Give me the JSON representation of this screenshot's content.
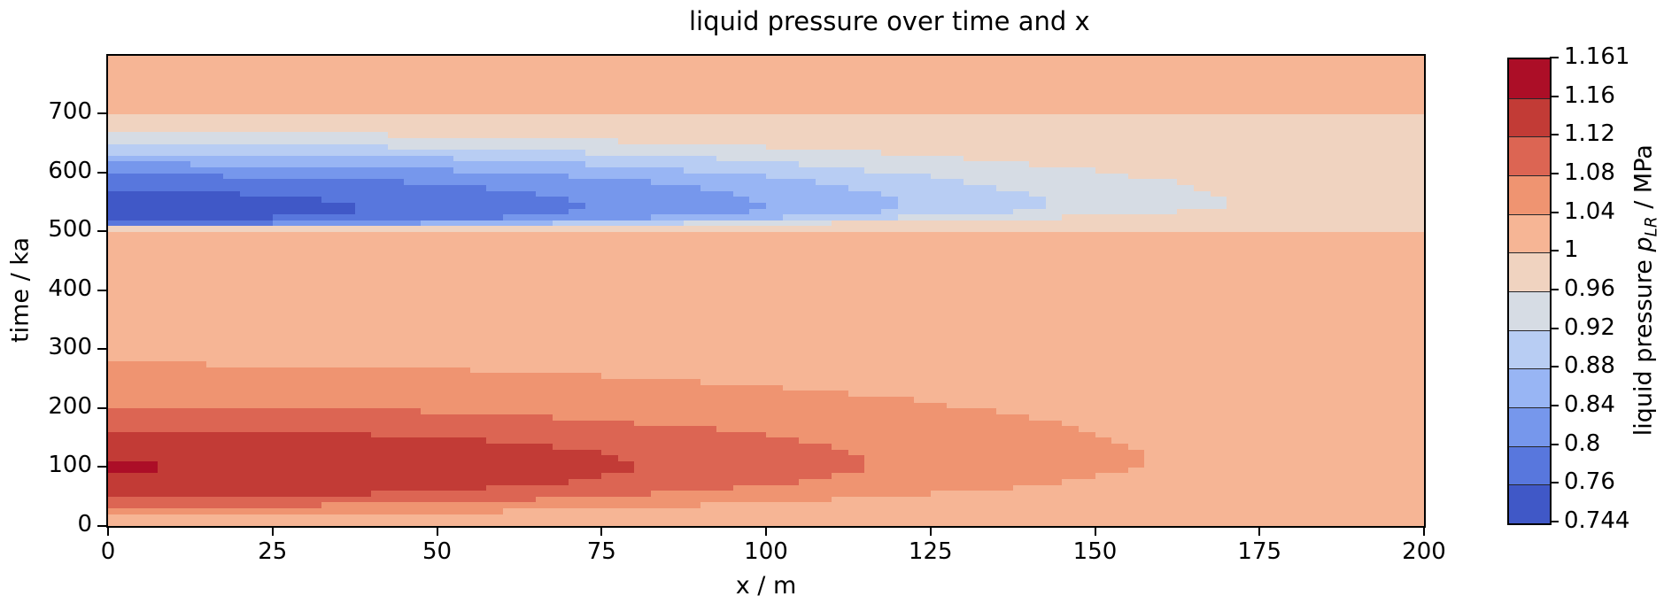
{
  "title": "liquid pressure over time and x",
  "axes": {
    "xlabel": "x / m",
    "ylabel": "time / ka",
    "xlim": [
      0,
      200
    ],
    "ylim": [
      0,
      798
    ],
    "x_ticks": [
      0,
      25,
      50,
      75,
      100,
      125,
      150,
      175,
      200
    ],
    "y_ticks": [
      0,
      100,
      200,
      300,
      400,
      500,
      600,
      700
    ]
  },
  "colorbar": {
    "label_prefix": "liquid pressure ",
    "label_symbol": "p",
    "label_subscript": "LR",
    "label_suffix": " / MPa",
    "spacing": "uniform",
    "tick_labels_top_to_bottom": [
      "1.161",
      "1.16",
      "1.12",
      "1.08",
      "1.04",
      "1",
      "0.96",
      "0.92",
      "0.88",
      "0.84",
      "0.8",
      "0.76",
      "0.744"
    ]
  },
  "chart_data": {
    "type": "filled_contour",
    "title": "liquid pressure over time and x",
    "xlabel": "x / m",
    "ylabel": "time / ka",
    "colorbar_label": "liquid pressure p_LR / MPa",
    "xlim": [
      0,
      200
    ],
    "ylim": [
      0,
      798
    ],
    "grid_on": false,
    "levels": [
      0.744,
      0.76,
      0.8,
      0.84,
      0.88,
      0.92,
      0.96,
      1.0,
      1.04,
      1.08,
      1.12,
      1.16,
      1.161
    ],
    "band_colors": [
      "#4058c7",
      "#5877dd",
      "#7697ec",
      "#98b5f4",
      "#b8cdf3",
      "#d6dce4",
      "#f0d3c0",
      "#f6b595",
      "#ef9471",
      "#dc6553",
      "#c23b36",
      "#ac0e27"
    ],
    "background_band": 7,
    "pressure_min_MPa": 0.744,
    "pressure_max_MPa": 1.161,
    "grid": {
      "nx": 80,
      "nt": 80
    },
    "features": {
      "strip": {
        "band": 6,
        "t_range": [
          502,
          696
        ]
      },
      "red_lobes": [
        {
          "band": 11,
          "x_reach": 9.5,
          "t_onset": 93,
          "t_peak": 100,
          "t_decay": 107
        },
        {
          "band": 10,
          "x_reach": 80,
          "t_onset": 48,
          "t_peak": 102,
          "t_decay": 163
        },
        {
          "band": 9,
          "x_reach": 115,
          "t_onset": 32,
          "t_peak": 105,
          "t_decay": 203
        },
        {
          "band": 8,
          "x_reach": 157,
          "t_onset": 18,
          "t_peak": 110,
          "t_decay": 275
        }
      ],
      "blue_lobes": [
        {
          "band": 0,
          "x_reach": 38.5,
          "t_onset": 518,
          "t_peak": 540,
          "t_decay": 568
        },
        {
          "band": 1,
          "x_reach": 73,
          "t_onset": 512,
          "t_peak": 540,
          "t_decay": 595
        },
        {
          "band": 2,
          "x_reach": 100,
          "t_onset": 510,
          "t_peak": 541,
          "t_decay": 614
        },
        {
          "band": 3,
          "x_reach": 121,
          "t_onset": 508,
          "t_peak": 542,
          "t_decay": 632
        },
        {
          "band": 4,
          "x_reach": 142,
          "t_onset": 506,
          "t_peak": 543,
          "t_decay": 648
        },
        {
          "band": 5,
          "x_reach": 170,
          "t_onset": 504,
          "t_peak": 545,
          "t_decay": 667
        }
      ]
    }
  }
}
